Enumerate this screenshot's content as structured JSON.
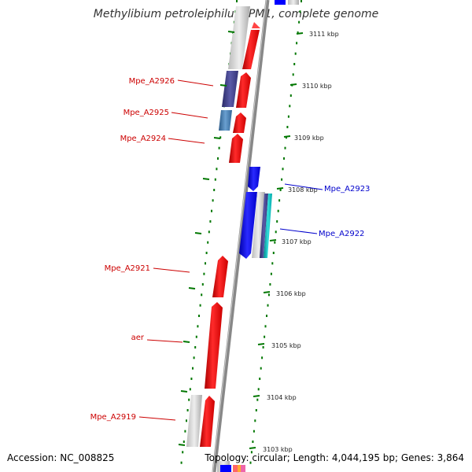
{
  "title": "Methylibium petroleiphilum PM1, complete genome",
  "accession": "Accession: NC_008825",
  "summary": "Topology: circular; Length: 4,044,195 bp; Genes: 3,864",
  "colors": {
    "forward": "#ff0000",
    "reverse": "#0000ff",
    "forward_label": "#cc0000",
    "reverse_label": "#0000cc",
    "tick": "#007700",
    "backbone": "#888888"
  },
  "ruler_ticks": [
    "3111 kbp",
    "3110 kbp",
    "3109 kbp",
    "3108 kbp",
    "3107 kbp",
    "3106 kbp",
    "3105 kbp",
    "3104 kbp",
    "3103 kbp"
  ],
  "gene_labels": [
    {
      "text": "Mpe_A2926",
      "strand": "forward"
    },
    {
      "text": "Mpe_A2925",
      "strand": "forward"
    },
    {
      "text": "Mpe_A2924",
      "strand": "forward"
    },
    {
      "text": "Mpe_A2923",
      "strand": "reverse"
    },
    {
      "text": "Mpe_A2922",
      "strand": "reverse"
    },
    {
      "text": "Mpe_A2921",
      "strand": "forward"
    },
    {
      "text": "aer",
      "strand": "forward"
    },
    {
      "text": "Mpe_A2919",
      "strand": "forward"
    }
  ]
}
